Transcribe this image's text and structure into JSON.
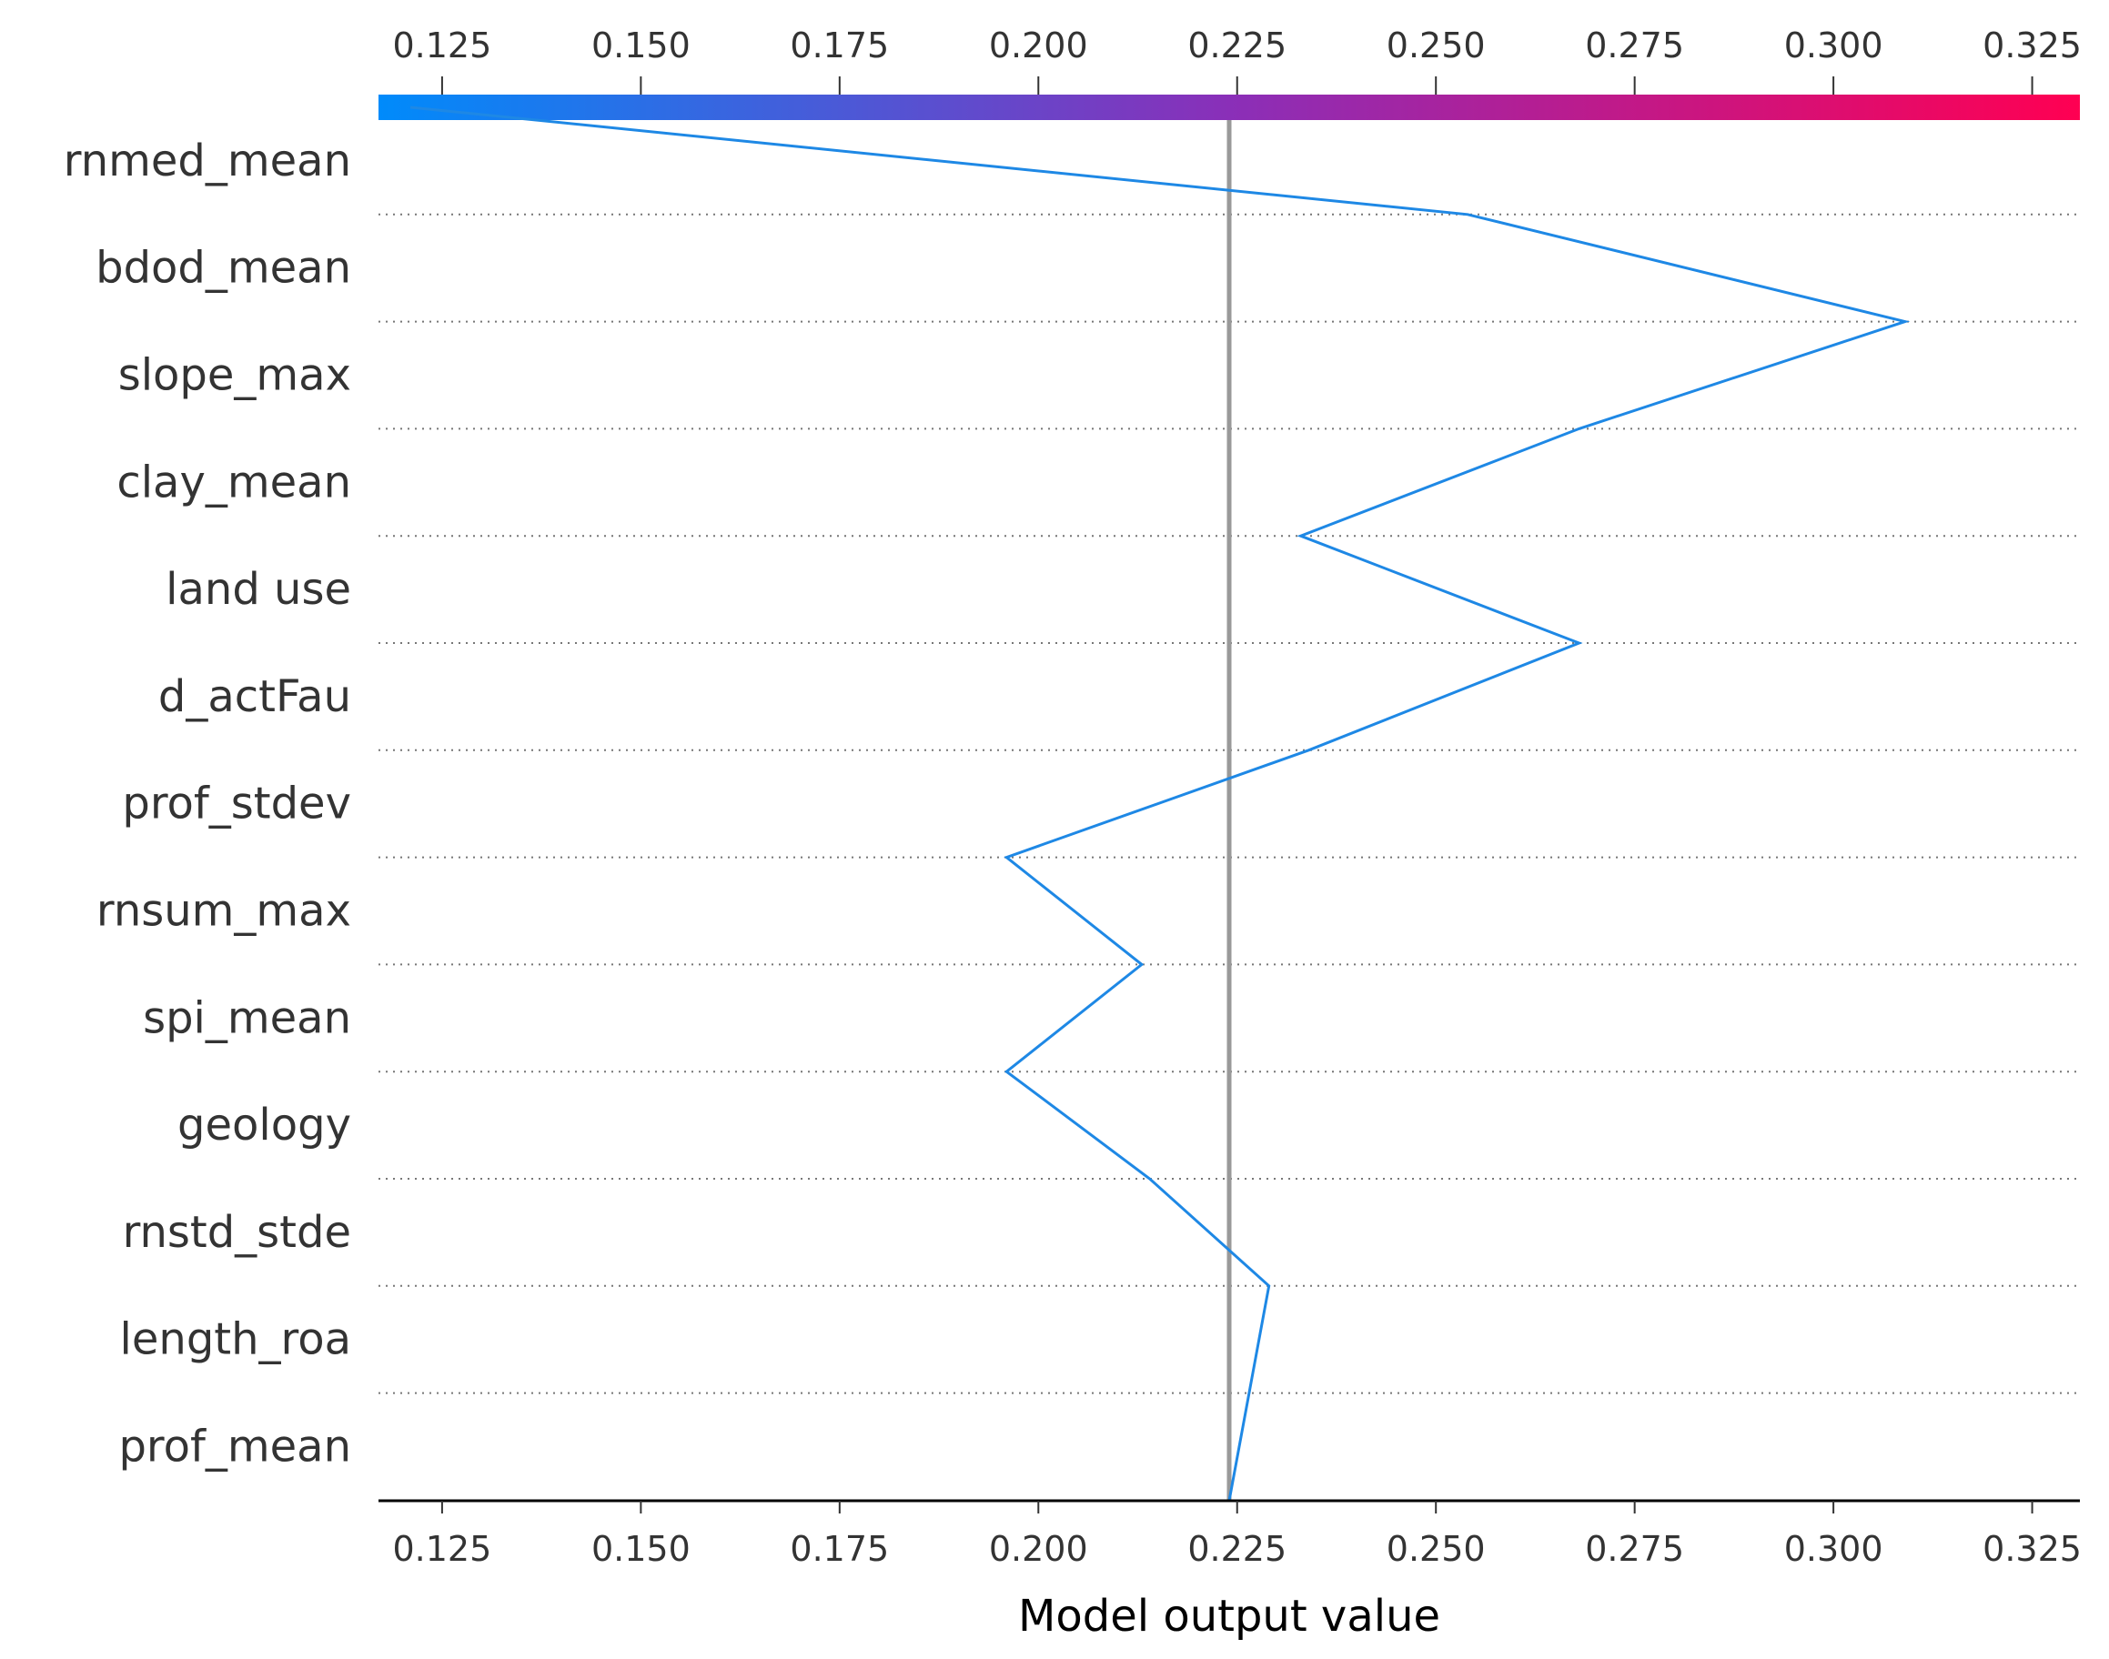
{
  "chart_data": {
    "type": "line",
    "xlabel": "Model output value",
    "xlim": [
      0.117,
      0.331
    ],
    "xticks": [
      0.125,
      0.15,
      0.175,
      0.2,
      0.225,
      0.25,
      0.275,
      0.3,
      0.325
    ],
    "xtick_labels": [
      "0.125",
      "0.150",
      "0.175",
      "0.200",
      "0.225",
      "0.250",
      "0.275",
      "0.300",
      "0.325"
    ],
    "base_value": 0.224,
    "features": [
      "rnmed_mean",
      "bdod_mean",
      "slope_max",
      "clay_mean",
      "land use",
      "d_actFau",
      "prof_stdev",
      "rnsum_max",
      "spi_mean",
      "geology",
      "rnstd_stde",
      "length_roa",
      "prof_mean"
    ],
    "path_values": [
      0.121,
      0.254,
      0.309,
      0.268,
      0.233,
      0.268,
      0.234,
      0.196,
      0.213,
      0.196,
      0.214,
      0.229,
      0.224
    ],
    "colors": {
      "line": "#1e88e5",
      "base_line": "#999999",
      "colorbar_low": "#008bfb",
      "colorbar_mid": "#8a2fb8",
      "colorbar_high": "#ff0052",
      "grid": "#777777",
      "axis": "#000000"
    }
  }
}
